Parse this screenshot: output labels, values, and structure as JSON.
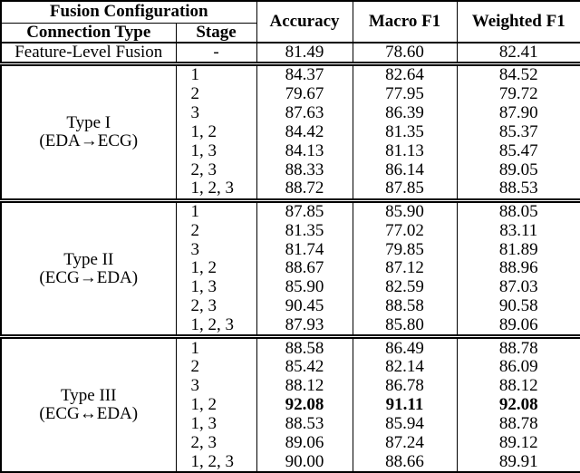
{
  "table": {
    "header": {
      "fusion_configuration": "Fusion Configuration",
      "connection_type": "Connection Type",
      "stage": "Stage",
      "accuracy": "Accuracy",
      "macro_f1": "Macro F1",
      "weighted_f1": "Weighted F1"
    },
    "baseline": {
      "connection_type": "Feature-Level Fusion",
      "stage": "-",
      "accuracy": "81.49",
      "macro_f1": "78.60",
      "weighted_f1": "82.41"
    },
    "sections": [
      {
        "type": "Type I",
        "direction": "(EDA→ECG)",
        "rows": [
          {
            "stage": "1",
            "accuracy": "84.37",
            "macro_f1": "82.64",
            "weighted_f1": "84.52"
          },
          {
            "stage": "2",
            "accuracy": "79.67",
            "macro_f1": "77.95",
            "weighted_f1": "79.72"
          },
          {
            "stage": "3",
            "accuracy": "87.63",
            "macro_f1": "86.39",
            "weighted_f1": "87.90"
          },
          {
            "stage": "1, 2",
            "accuracy": "84.42",
            "macro_f1": "81.35",
            "weighted_f1": "85.37"
          },
          {
            "stage": "1, 3",
            "accuracy": "84.13",
            "macro_f1": "81.13",
            "weighted_f1": "85.47"
          },
          {
            "stage": "2, 3",
            "accuracy": "88.33",
            "macro_f1": "86.14",
            "weighted_f1": "89.05"
          },
          {
            "stage": "1, 2, 3",
            "accuracy": "88.72",
            "macro_f1": "87.85",
            "weighted_f1": "88.53"
          }
        ]
      },
      {
        "type": "Type II",
        "direction": "(ECG→EDA)",
        "rows": [
          {
            "stage": "1",
            "accuracy": "87.85",
            "macro_f1": "85.90",
            "weighted_f1": "88.05"
          },
          {
            "stage": "2",
            "accuracy": "81.35",
            "macro_f1": "77.02",
            "weighted_f1": "83.11"
          },
          {
            "stage": "3",
            "accuracy": "81.74",
            "macro_f1": "79.85",
            "weighted_f1": "81.89"
          },
          {
            "stage": "1, 2",
            "accuracy": "88.67",
            "macro_f1": "87.12",
            "weighted_f1": "88.96"
          },
          {
            "stage": "1, 3",
            "accuracy": "85.90",
            "macro_f1": "82.59",
            "weighted_f1": "87.03"
          },
          {
            "stage": "2, 3",
            "accuracy": "90.45",
            "macro_f1": "88.58",
            "weighted_f1": "90.58"
          },
          {
            "stage": "1, 2, 3",
            "accuracy": "87.93",
            "macro_f1": "85.80",
            "weighted_f1": "89.06"
          }
        ]
      },
      {
        "type": "Type III",
        "direction": "(ECG↔EDA)",
        "rows": [
          {
            "stage": "1",
            "accuracy": "88.58",
            "macro_f1": "86.49",
            "weighted_f1": "88.78"
          },
          {
            "stage": "2",
            "accuracy": "85.42",
            "macro_f1": "82.14",
            "weighted_f1": "86.09"
          },
          {
            "stage": "3",
            "accuracy": "88.12",
            "macro_f1": "86.78",
            "weighted_f1": "88.12"
          },
          {
            "stage": "1, 2",
            "accuracy": "92.08",
            "macro_f1": "91.11",
            "weighted_f1": "92.08",
            "bold": true
          },
          {
            "stage": "1, 3",
            "accuracy": "88.53",
            "macro_f1": "85.94",
            "weighted_f1": "88.78"
          },
          {
            "stage": "2, 3",
            "accuracy": "89.06",
            "macro_f1": "87.24",
            "weighted_f1": "89.12"
          },
          {
            "stage": "1, 2, 3",
            "accuracy": "90.00",
            "macro_f1": "88.66",
            "weighted_f1": "89.91"
          }
        ]
      }
    ]
  }
}
